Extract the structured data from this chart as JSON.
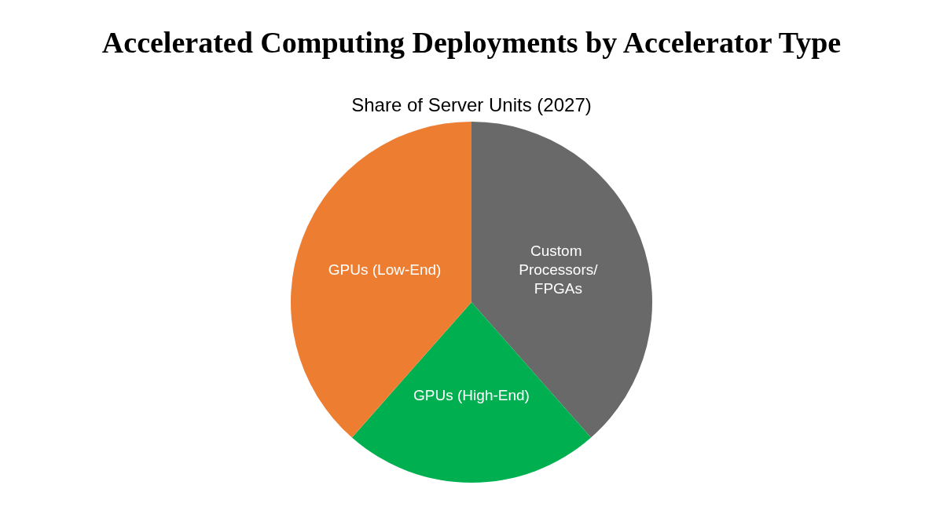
{
  "chart_data": {
    "type": "pie",
    "title": "Accelerated Computing Deployments by Accelerator Type",
    "subtitle": "Share of Server Units (2027)",
    "categories": [
      "Custom Processors/FPGAs",
      "GPUs (High-End)",
      "GPUs (Low-End)"
    ],
    "values": [
      38.5,
      23,
      38.5
    ],
    "colors": [
      "#696969",
      "#00b050",
      "#ed7d31"
    ],
    "legend": false
  }
}
